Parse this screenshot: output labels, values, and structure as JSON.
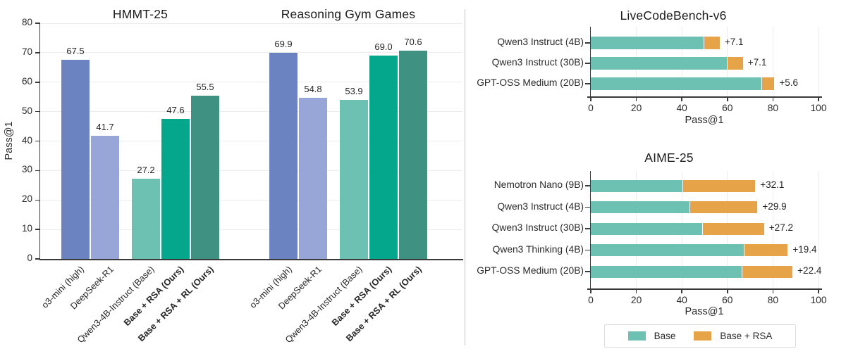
{
  "chart_data": [
    {
      "type": "bar",
      "title": "HMMT-25",
      "ylabel": "Pass@1",
      "ylim": [
        0,
        80
      ],
      "yticks": [
        0,
        10,
        20,
        30,
        40,
        50,
        60,
        70,
        80
      ],
      "grid": "horizontal",
      "categories": [
        "o3-mini (high)",
        "DeepSeek-R1",
        "Qwen3-4B-Instruct (Base)",
        "Base + RSA (Ours)",
        "Base + RSA + RL (Ours)"
      ],
      "bold_categories": [
        false,
        false,
        false,
        true,
        true
      ],
      "values": [
        67.5,
        41.7,
        27.2,
        47.6,
        55.5
      ],
      "value_labels": [
        "67.5",
        "41.7",
        "27.2",
        "47.6",
        "55.5"
      ],
      "bar_colors": [
        "#6B83C0",
        "#97A5D7",
        "#6CC1B2",
        "#04A78B",
        "#3F9181"
      ]
    },
    {
      "type": "bar",
      "title": "Reasoning Gym Games",
      "ylabel": "Pass@1",
      "ylim": [
        0,
        80
      ],
      "yticks": [
        0,
        10,
        20,
        30,
        40,
        50,
        60,
        70,
        80
      ],
      "grid": "horizontal",
      "categories": [
        "o3-mini (high)",
        "DeepSeek-R1",
        "Qwen3-4B-Instruct (Base)",
        "Base + RSA (Ours)",
        "Base + RSA + RL (Ours)"
      ],
      "bold_categories": [
        false,
        false,
        false,
        true,
        true
      ],
      "values": [
        69.9,
        54.8,
        53.9,
        69.0,
        70.6
      ],
      "value_labels": [
        "69.9",
        "54.8",
        "53.9",
        "69.0",
        "70.6"
      ],
      "bar_colors": [
        "#6B83C0",
        "#97A5D7",
        "#6CC1B2",
        "#04A78B",
        "#3F9181"
      ]
    },
    {
      "type": "stacked_barh",
      "title": "LiveCodeBench-v6",
      "xlabel": "Pass@1",
      "xlim": [
        0,
        100
      ],
      "xticks": [
        0,
        20,
        40,
        60,
        80,
        100
      ],
      "grid": "vertical",
      "categories": [
        "Qwen3 Instruct (4B)",
        "Qwen3 Instruct (30B)",
        "GPT-OSS Medium (20B)"
      ],
      "series": [
        {
          "name": "Base",
          "color": "#6CC1B2",
          "values": [
            49.5,
            59.7,
            75.0
          ]
        },
        {
          "name": "Base + RSA",
          "color": "#E6A348",
          "values": [
            7.1,
            7.1,
            5.6
          ]
        }
      ],
      "delta_labels": [
        "+7.1",
        "+7.1",
        "+5.6"
      ]
    },
    {
      "type": "stacked_barh",
      "title": "AIME-25",
      "xlabel": "Pass@1",
      "xlim": [
        0,
        100
      ],
      "xticks": [
        0,
        20,
        40,
        60,
        80,
        100
      ],
      "grid": "vertical",
      "categories": [
        "Nemotron Nano (9B)",
        "Qwen3 Instruct (4B)",
        "Qwen3 Instruct (30B)",
        "Qwen3 Thinking (4B)",
        "GPT-OSS Medium (20B)"
      ],
      "series": [
        {
          "name": "Base",
          "color": "#6CC1B2",
          "values": [
            40.1,
            43.3,
            48.9,
            67.1,
            66.2
          ]
        },
        {
          "name": "Base + RSA",
          "color": "#E6A348",
          "values": [
            32.1,
            29.9,
            27.2,
            19.4,
            22.4
          ]
        }
      ],
      "delta_labels": [
        "+32.1",
        "+29.9",
        "+27.2",
        "+19.4",
        "+22.4"
      ]
    }
  ],
  "legend": {
    "items": [
      {
        "label": "Base",
        "color": "#6CC1B2"
      },
      {
        "label": "Base + RSA",
        "color": "#E6A348"
      }
    ]
  },
  "style": {
    "spine_color": "#3A3A3A",
    "grid_color": "#ECECEC",
    "text_color": "#2b2b2b",
    "background": "#FFFFFF"
  }
}
